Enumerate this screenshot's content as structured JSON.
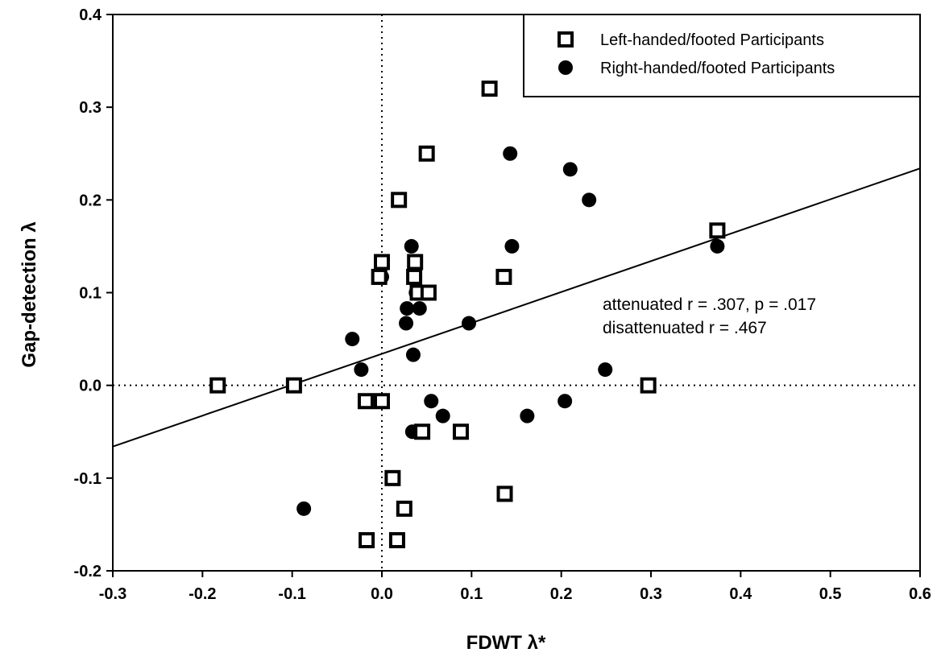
{
  "chart_data": {
    "type": "scatter",
    "title": "",
    "xlabel": "FDWT λ*",
    "ylabel": "Gap-detection λ",
    "xlim": [
      -0.3,
      0.6
    ],
    "ylim": [
      -0.2,
      0.4
    ],
    "x_ticks": [
      "-0.3",
      "-0.2",
      "-0.1",
      "0.0",
      "0.1",
      "0.2",
      "0.3",
      "0.4",
      "0.5",
      "0.6"
    ],
    "y_ticks": [
      "-0.2",
      "-0.1",
      "0.0",
      "0.1",
      "0.2",
      "0.3",
      "0.4"
    ],
    "grid": false,
    "reference_lines": {
      "x": 0,
      "y": 0,
      "style": "dotted"
    },
    "legend_position": "top-right",
    "series": [
      {
        "name": "Left-handed/footed Participants",
        "marker": "square-open",
        "points": [
          [
            -0.183,
            0.0
          ],
          [
            -0.098,
            0.0
          ],
          [
            -0.017,
            -0.167
          ],
          [
            -0.018,
            -0.017
          ],
          [
            0.0,
            -0.017
          ],
          [
            -0.003,
            0.117
          ],
          [
            0.0,
            0.133
          ],
          [
            0.012,
            -0.1
          ],
          [
            0.017,
            -0.167
          ],
          [
            0.019,
            0.2
          ],
          [
            0.025,
            -0.133
          ],
          [
            0.036,
            0.117
          ],
          [
            0.037,
            0.133
          ],
          [
            0.04,
            0.1
          ],
          [
            0.045,
            -0.05
          ],
          [
            0.05,
            0.25
          ],
          [
            0.052,
            0.1
          ],
          [
            0.088,
            -0.05
          ],
          [
            0.12,
            0.32
          ],
          [
            0.136,
            0.117
          ],
          [
            0.137,
            -0.117
          ],
          [
            0.297,
            0.0
          ],
          [
            0.374,
            0.167
          ]
        ]
      },
      {
        "name": "Right-handed/footed Participants",
        "marker": "circle-filled",
        "points": [
          [
            -0.087,
            -0.133
          ],
          [
            -0.033,
            0.05
          ],
          [
            -0.023,
            0.017
          ],
          [
            0.0,
            0.117
          ],
          [
            0.027,
            0.067
          ],
          [
            0.028,
            0.083
          ],
          [
            0.033,
            0.15
          ],
          [
            0.034,
            -0.05
          ],
          [
            0.035,
            0.033
          ],
          [
            0.038,
            0.1
          ],
          [
            0.042,
            0.083
          ],
          [
            0.055,
            -0.017
          ],
          [
            0.068,
            -0.033
          ],
          [
            0.097,
            0.067
          ],
          [
            0.143,
            0.25
          ],
          [
            0.145,
            0.15
          ],
          [
            0.162,
            -0.033
          ],
          [
            0.204,
            -0.017
          ],
          [
            0.21,
            0.233
          ],
          [
            0.231,
            0.2
          ],
          [
            0.249,
            0.017
          ],
          [
            0.374,
            0.15
          ]
        ]
      }
    ],
    "regression_line": {
      "x": [
        -0.3,
        0.6
      ],
      "y": [
        -0.066,
        0.234
      ]
    },
    "annotations": [
      "attenuated r = .307, p = .017",
      "disattenuated r = .467"
    ]
  }
}
